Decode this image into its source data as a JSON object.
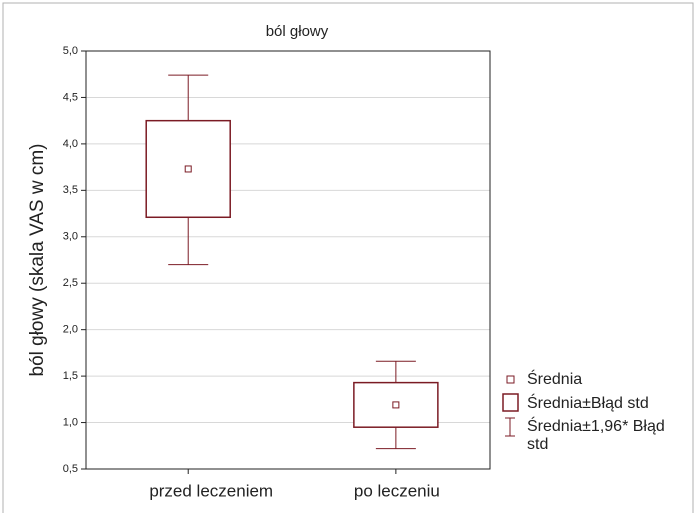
{
  "chart_data": {
    "type": "box",
    "title": "ból głowy",
    "ylabel": "ból głowy (skala VAS w cm)",
    "categories": [
      "przed leczeniem",
      "po leczeniu"
    ],
    "mean": [
      3.73,
      1.19
    ],
    "box_low": [
      3.21,
      0.95
    ],
    "box_high": [
      4.25,
      1.43
    ],
    "whisker_low": [
      2.7,
      0.72
    ],
    "whisker_high": [
      4.74,
      1.66
    ],
    "color": "#7b1b24",
    "grid": true,
    "legend": [
      "Średnia",
      "Średnia±Błąd std",
      "Średnia±1,96* Błąd std"
    ],
    "ylim": [
      0.5,
      5.0
    ],
    "yticks": [
      {
        "value": 0.5,
        "label": "0,5"
      },
      {
        "value": 1.0,
        "label": "1,0"
      },
      {
        "value": 1.5,
        "label": "1,5"
      },
      {
        "value": 2.0,
        "label": "2,0"
      },
      {
        "value": 2.5,
        "label": "2,5"
      },
      {
        "value": 3.0,
        "label": "3,0"
      },
      {
        "value": 3.5,
        "label": "3,5"
      },
      {
        "value": 4.0,
        "label": "4,0"
      },
      {
        "value": 4.5,
        "label": "4,5"
      },
      {
        "value": 5.0,
        "label": "5,0"
      }
    ]
  }
}
